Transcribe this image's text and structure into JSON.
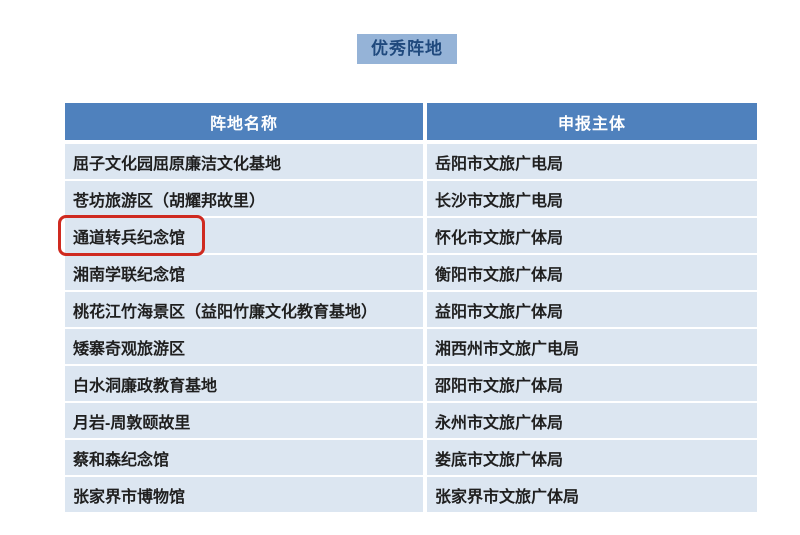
{
  "page": {
    "background": "#ffffff"
  },
  "badge": {
    "label": "优秀阵地",
    "bg_color": "#95b3d7",
    "text_color": "#1f497d"
  },
  "table": {
    "header": {
      "col_name": "阵地名称",
      "col_entity": "申报主体",
      "bg_color": "#4f81bd",
      "text_color": "#ffffff"
    },
    "row_bg_color": "#dce6f1",
    "rows": [
      {
        "name": "屈子文化园屈原廉洁文化基地",
        "entity": "岳阳市文旅广电局",
        "highlighted": false
      },
      {
        "name": "苍坊旅游区（胡耀邦故里）",
        "entity": "长沙市文旅广电局",
        "highlighted": false
      },
      {
        "name": "通道转兵纪念馆",
        "entity": "怀化市文旅广体局",
        "highlighted": true
      },
      {
        "name": "湘南学联纪念馆",
        "entity": "衡阳市文旅广体局",
        "highlighted": false
      },
      {
        "name": "桃花江竹海景区（益阳竹廉文化教育基地）",
        "entity": "益阳市文旅广体局",
        "highlighted": false
      },
      {
        "name": "矮寨奇观旅游区",
        "entity": "湘西州市文旅广电局",
        "highlighted": false
      },
      {
        "name": "白水洞廉政教育基地",
        "entity": "邵阳市文旅广体局",
        "highlighted": false
      },
      {
        "name": "月岩-周敦颐故里",
        "entity": "永州市文旅广体局",
        "highlighted": false
      },
      {
        "name": "蔡和森纪念馆",
        "entity": "娄底市文旅广体局",
        "highlighted": false
      },
      {
        "name": "张家界市博物馆",
        "entity": "张家界市文旅广体局",
        "highlighted": false
      }
    ]
  },
  "annotation": {
    "type": "red-highlight-box",
    "target": "通道转兵纪念馆",
    "color": "#cf2a20"
  }
}
